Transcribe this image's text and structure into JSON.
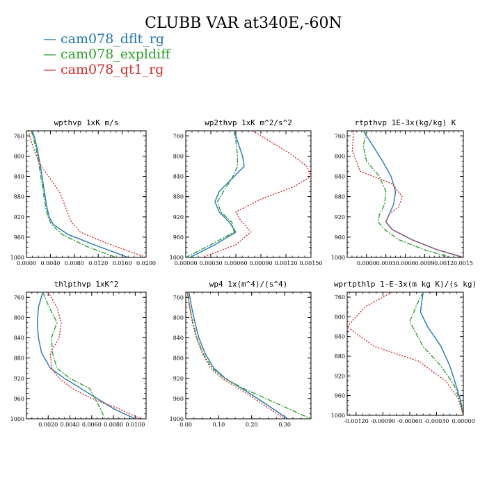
{
  "title": "CLUBB VAR at340E,-60N",
  "legend": [
    {
      "label": "— cam078_dflt_rg",
      "color": "#1f77b4"
    },
    {
      "label": "— cam078_expldiff",
      "color": "#2ca02c"
    },
    {
      "label": "— cam078_qt1_rg",
      "color": "#d62728"
    }
  ],
  "chart_data": [
    {
      "type": "line",
      "title": "wpthvp  1xK m/s",
      "xlim": [
        0.0,
        0.02
      ],
      "ylim": [
        750,
        1000
      ],
      "xticks": [
        0.0,
        0.004,
        0.008,
        0.012,
        0.016,
        0.02
      ],
      "xtick_labels": [
        "0.0000",
        "0.0040",
        "0.0080",
        "0.0120",
        "0.0160",
        "0.0200"
      ],
      "yticks": [
        760,
        800,
        840,
        880,
        920,
        960,
        1000
      ],
      "ytick_labels": [
        "760",
        "800",
        "840",
        "880",
        "920",
        "960",
        "1000"
      ],
      "series": [
        {
          "name": "cam078_dflt_rg",
          "color": "#1f77b4",
          "dash": "solid",
          "x": [
            0.001,
            0.0014,
            0.0018,
            0.0022,
            0.0026,
            0.003,
            0.0034,
            0.0038,
            0.0045,
            0.007,
            0.012,
            0.017
          ],
          "y": [
            750,
            765,
            785,
            810,
            840,
            870,
            900,
            920,
            935,
            955,
            978,
            1000
          ]
        },
        {
          "name": "cam078_expldiff",
          "color": "#2ca02c",
          "dash": "dashdot",
          "x": [
            0.0008,
            0.0012,
            0.0016,
            0.002,
            0.0024,
            0.0028,
            0.0032,
            0.0036,
            0.0042,
            0.006,
            0.01,
            0.015
          ],
          "y": [
            750,
            765,
            785,
            810,
            840,
            870,
            900,
            920,
            935,
            955,
            978,
            1000
          ]
        },
        {
          "name": "cam078_qt1_rg",
          "color": "#d62728",
          "dash": "dotted",
          "x": [
            0.0003,
            0.0008,
            0.0015,
            0.0025,
            0.004,
            0.0055,
            0.0062,
            0.0068,
            0.0075,
            0.009,
            0.013,
            0.02
          ],
          "y": [
            750,
            770,
            795,
            820,
            845,
            870,
            890,
            910,
            930,
            950,
            970,
            1000
          ]
        }
      ]
    },
    {
      "type": "line",
      "title": "wp2thvp  1xK m^2/s^2",
      "xlim": [
        0.0,
        0.0015
      ],
      "ylim": [
        750,
        1000
      ],
      "xticks": [
        0.0,
        0.0003,
        0.0006,
        0.0009,
        0.0012,
        0.0015
      ],
      "xtick_labels": [
        "0.00000",
        "0.00030",
        "0.00060",
        "0.00090",
        "0.00120",
        "0.00150"
      ],
      "yticks": [
        760,
        800,
        840,
        880,
        920,
        960,
        1000
      ],
      "ytick_labels": [
        "760",
        "800",
        "840",
        "880",
        "920",
        "960",
        "1000"
      ],
      "series": [
        {
          "name": "cam078_dflt_rg",
          "color": "#1f77b4",
          "dash": "solid",
          "x": [
            0.00058,
            0.00062,
            0.00068,
            0.0007,
            0.00055,
            0.0004,
            0.00035,
            0.0004,
            0.00052,
            0.0006,
            0.00035,
            5e-05
          ],
          "y": [
            750,
            770,
            800,
            820,
            845,
            870,
            890,
            910,
            930,
            950,
            975,
            1000
          ]
        },
        {
          "name": "cam078_expldiff",
          "color": "#2ca02c",
          "dash": "dashdot",
          "x": [
            0.00058,
            0.0006,
            0.00062,
            0.00062,
            0.00055,
            0.00045,
            0.00038,
            0.00042,
            0.00055,
            0.00058,
            0.0003,
            0.0
          ],
          "y": [
            750,
            770,
            800,
            820,
            845,
            870,
            890,
            910,
            930,
            950,
            975,
            1000
          ]
        },
        {
          "name": "cam078_qt1_rg",
          "color": "#d62728",
          "dash": "dotted",
          "x": [
            0.0008,
            0.001,
            0.00125,
            0.00145,
            0.0015,
            0.0013,
            0.0009,
            0.0006,
            0.00065,
            0.00078,
            0.0006,
            0.0002
          ],
          "y": [
            750,
            770,
            795,
            820,
            840,
            860,
            885,
            910,
            925,
            950,
            975,
            1000
          ]
        }
      ]
    },
    {
      "type": "line",
      "title": "rtpthvp  1E-3x(kg/kg) K",
      "xlim": [
        -0.0003,
        0.0015
      ],
      "ylim": [
        750,
        1000
      ],
      "xticks": [
        0.0,
        0.0003,
        0.0006,
        0.0009,
        0.0012,
        0.0015
      ],
      "xtick_labels": [
        "0.0000",
        "0.0003",
        "0.0006",
        "0.0009",
        "0.0012",
        "0.0015"
      ],
      "yticks": [
        760,
        800,
        840,
        880,
        920,
        960,
        1000
      ],
      "ytick_labels": [
        "760",
        "800",
        "840",
        "880",
        "920",
        "960",
        "1000"
      ],
      "series": [
        {
          "name": "cam078_dflt_rg",
          "color": "#1f77b4",
          "dash": "solid",
          "x": [
            -5e-05,
            0.0001,
            0.00025,
            0.00038,
            0.00045,
            0.00042,
            0.00035,
            0.0003,
            0.0004,
            0.0007,
            0.0011,
            0.0015
          ],
          "y": [
            750,
            780,
            810,
            840,
            870,
            895,
            915,
            930,
            945,
            965,
            985,
            1000
          ]
        },
        {
          "name": "cam078_expldiff",
          "color": "#2ca02c",
          "dash": "dashdot",
          "x": [
            0.0,
            -5e-05,
            0.0,
            0.0002,
            0.0003,
            0.00028,
            0.0002,
            0.00018,
            0.00028,
            0.0005,
            0.0009,
            0.0013
          ],
          "y": [
            750,
            780,
            810,
            840,
            870,
            895,
            915,
            930,
            945,
            965,
            985,
            1000
          ]
        },
        {
          "name": "cam078_qt1_rg",
          "color": "#d62728",
          "dash": "dotted",
          "x": [
            -0.0002,
            -0.00022,
            -0.0001,
            0.0004,
            0.00055,
            0.0005,
            0.00035,
            0.0003,
            0.0004,
            0.0007,
            0.0011,
            0.0015
          ],
          "y": [
            750,
            790,
            830,
            855,
            880,
            900,
            915,
            930,
            945,
            965,
            985,
            1000
          ]
        }
      ]
    },
    {
      "type": "line",
      "title": "thlpthvp  1xK^2",
      "xlim": [
        0.0,
        0.011
      ],
      "ylim": [
        750,
        1000
      ],
      "xticks": [
        0.002,
        0.004,
        0.006,
        0.008,
        0.01
      ],
      "xtick_labels": [
        "0.0020",
        "0.0040",
        "0.0060",
        "0.0080",
        "0.0100"
      ],
      "yticks": [
        760,
        800,
        840,
        880,
        920,
        960,
        1000
      ],
      "ytick_labels": [
        "760",
        "800",
        "840",
        "880",
        "920",
        "960",
        "1000"
      ],
      "series": [
        {
          "name": "cam078_dflt_rg",
          "color": "#1f77b4",
          "dash": "solid",
          "x": [
            0.0015,
            0.0011,
            0.001,
            0.0011,
            0.0014,
            0.0022,
            0.0035,
            0.005,
            0.0065,
            0.008,
            0.01
          ],
          "y": [
            750,
            780,
            810,
            840,
            870,
            900,
            920,
            940,
            960,
            980,
            1000
          ]
        },
        {
          "name": "cam078_expldiff",
          "color": "#2ca02c",
          "dash": "dashdot",
          "x": [
            0.0015,
            0.0021,
            0.0028,
            0.0023,
            0.0024,
            0.0028,
            0.004,
            0.0058,
            0.0063,
            0.0068,
            0.0072
          ],
          "y": [
            750,
            780,
            810,
            840,
            870,
            900,
            920,
            940,
            960,
            980,
            1000
          ]
        },
        {
          "name": "cam078_qt1_rg",
          "color": "#d62728",
          "dash": "dotted",
          "x": [
            0.002,
            0.0028,
            0.0032,
            0.003,
            0.0022,
            0.0023,
            0.003,
            0.0042,
            0.006,
            0.0085,
            0.0105
          ],
          "y": [
            750,
            780,
            810,
            840,
            870,
            900,
            920,
            940,
            960,
            980,
            1000
          ]
        }
      ]
    },
    {
      "type": "line",
      "title": "wp4  1x(m^4)/(s^4)",
      "xlim": [
        0.0,
        0.38
      ],
      "ylim": [
        750,
        1000
      ],
      "xticks": [
        0.0,
        0.1,
        0.2,
        0.3
      ],
      "xtick_labels": [
        "0.00",
        "0.10",
        "0.20",
        "0.30"
      ],
      "yticks": [
        760,
        800,
        840,
        880,
        920,
        960,
        1000
      ],
      "ytick_labels": [
        "760",
        "800",
        "840",
        "880",
        "920",
        "960",
        "1000"
      ],
      "series": [
        {
          "name": "cam078_dflt_rg",
          "color": "#1f77b4",
          "dash": "solid",
          "x": [
            0.01,
            0.018,
            0.028,
            0.04,
            0.058,
            0.085,
            0.12,
            0.17,
            0.23,
            0.31
          ],
          "y": [
            750,
            780,
            810,
            840,
            870,
            900,
            920,
            940,
            965,
            1000
          ]
        },
        {
          "name": "cam078_expldiff",
          "color": "#2ca02c",
          "dash": "dashdot",
          "x": [
            0.005,
            0.012,
            0.022,
            0.034,
            0.052,
            0.08,
            0.118,
            0.175,
            0.26,
            0.38
          ],
          "y": [
            750,
            780,
            810,
            840,
            870,
            900,
            920,
            940,
            965,
            1000
          ]
        },
        {
          "name": "cam078_qt1_rg",
          "color": "#d62728",
          "dash": "dotted",
          "x": [
            0.005,
            0.012,
            0.02,
            0.032,
            0.05,
            0.075,
            0.11,
            0.16,
            0.22,
            0.3
          ],
          "y": [
            750,
            780,
            810,
            840,
            870,
            900,
            920,
            940,
            965,
            1000
          ]
        }
      ]
    },
    {
      "type": "line",
      "title": "wprtpthlp  1-E-3x(m kg K)/(s kg)",
      "xlim": [
        -0.0013,
        0.0
      ],
      "ylim": [
        750,
        1000
      ],
      "xticks": [
        -0.0012,
        -0.0009,
        -0.0006,
        -0.0003,
        0.0
      ],
      "xtick_labels": [
        "-0.00120",
        "-0.00090",
        "-0.00060",
        "-0.00030",
        "0.00000"
      ],
      "yticks": [
        760,
        800,
        840,
        880,
        920,
        960,
        1000
      ],
      "ytick_labels": [
        "760",
        "800",
        "840",
        "880",
        "920",
        "960",
        "1000"
      ],
      "series": [
        {
          "name": "cam078_dflt_rg",
          "color": "#1f77b4",
          "dash": "solid",
          "x": [
            -0.00045,
            -0.00048,
            -0.0004,
            -0.00025,
            -0.00015,
            -8e-05,
            -3e-05,
            0.0
          ],
          "y": [
            750,
            790,
            820,
            860,
            900,
            940,
            970,
            1000
          ]
        },
        {
          "name": "cam078_expldiff",
          "color": "#2ca02c",
          "dash": "dashdot",
          "x": [
            -0.00045,
            -0.00052,
            -0.0006,
            -0.00045,
            -0.00025,
            -0.0001,
            -4e-05,
            0.0
          ],
          "y": [
            750,
            775,
            810,
            860,
            900,
            940,
            970,
            1000
          ]
        },
        {
          "name": "cam078_qt1_rg",
          "color": "#d62728",
          "dash": "dotted",
          "x": [
            -0.0008,
            -0.0011,
            -0.0013,
            -0.001,
            -0.0005,
            -0.0002,
            -6e-05,
            0.0
          ],
          "y": [
            750,
            780,
            820,
            860,
            890,
            930,
            965,
            1000
          ]
        }
      ]
    }
  ]
}
